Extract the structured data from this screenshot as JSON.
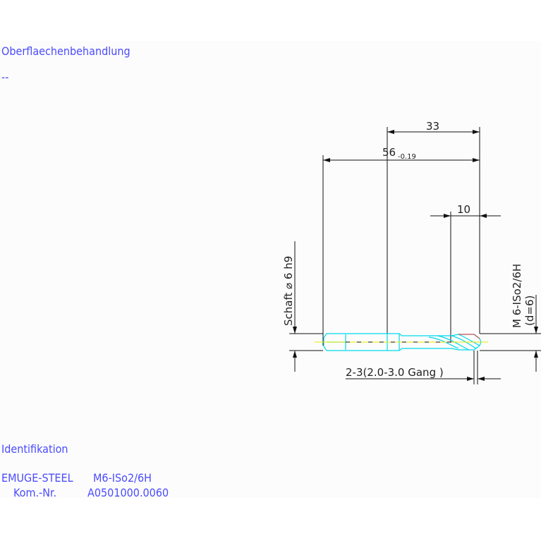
{
  "surface_treatment": {
    "label": "Oberflaechenbehandlung",
    "value": "--"
  },
  "dimensions": {
    "overall_length": {
      "value": "56",
      "tolerance": "-0.19"
    },
    "flute_length": "33",
    "thread_length": "10",
    "shank": "Schaft ⌀ 6 h9",
    "thread": "M 6-ISo2/6H",
    "thread_diameter": "(d=6)",
    "chamfer": "2-3(2.0-3.0 Gang  )"
  },
  "identification": {
    "label": "Identifikation",
    "line1_brand": "EMUGE-STEEL",
    "line1_thread": "M6-ISo2/6H",
    "line2_label": "Kom.-Nr.",
    "line2_value": "A0501000.0060"
  },
  "colors": {
    "text": "#4b4bff",
    "tool_outline": "#00d8ec",
    "centerline": "#e8e800",
    "dimension": "#111111"
  }
}
